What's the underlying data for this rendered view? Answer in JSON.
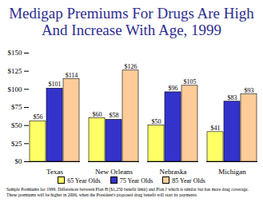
{
  "chart_data": {
    "type": "bar",
    "title": "Medigap Premiums For Drugs Are High And Increase With Age, 1999",
    "caption": "Sample Premiums for 1999. Differences between Plan H ($1,250 benefit limit) and Plan J which is similar but has more drug coverage. These premiums will be higher in 2006, when the President's proposed drug benefit will start its payments.",
    "categories": [
      "Texas",
      "New Orleans",
      "Nebraska",
      "Michigan"
    ],
    "series": [
      {
        "name": "65 Year Olds",
        "color": "#ffff66",
        "values": [
          56,
          60,
          50,
          41
        ],
        "value_labels": [
          "$56",
          "$60",
          "$50",
          "$41"
        ]
      },
      {
        "name": "75 Year Olds",
        "color": "#3333cc",
        "values": [
          101,
          58,
          96,
          83
        ],
        "value_labels": [
          "$101",
          "$58",
          "$96",
          "$83"
        ]
      },
      {
        "name": "85 Year Olds",
        "color": "#ffcc99",
        "values": [
          114,
          126,
          105,
          93
        ],
        "value_labels": [
          "$114",
          "$126",
          "$105",
          "$93"
        ]
      }
    ],
    "ylim": [
      0,
      150
    ],
    "yticks": [
      {
        "value": 0,
        "label": "$0"
      },
      {
        "value": 25,
        "label": "$25"
      },
      {
        "value": 50,
        "label": "$50"
      },
      {
        "value": 75,
        "label": "$75"
      },
      {
        "value": 100,
        "label": "$100"
      },
      {
        "value": 125,
        "label": "$125"
      },
      {
        "value": 150,
        "label": "$150"
      }
    ],
    "data_labels": true,
    "grid": false,
    "legend": "bottom"
  }
}
